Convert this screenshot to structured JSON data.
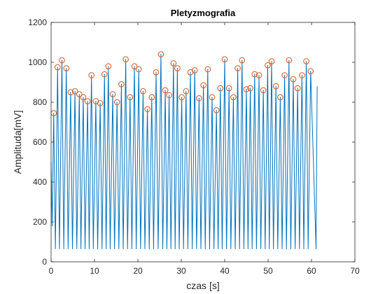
{
  "chart_data": {
    "type": "line",
    "title": "Pletyzmografia",
    "xlabel": "czas [s]",
    "ylabel": "Amplituda[mV]",
    "xlim": [
      0,
      70
    ],
    "ylim": [
      0,
      1200
    ],
    "xticks": [
      0,
      10,
      20,
      30,
      40,
      50,
      60,
      70
    ],
    "yticks": [
      0,
      200,
      400,
      600,
      800,
      1000,
      1200
    ],
    "xtick_labels": [
      "0",
      "10",
      "20",
      "30",
      "40",
      "50",
      "60",
      "70"
    ],
    "ytick_labels": [
      "0",
      "200",
      "400",
      "600",
      "800",
      "1000",
      "1200"
    ],
    "grid": false,
    "legend": "none",
    "series": [
      {
        "kind": "line",
        "color": "#0072BD",
        "peaks": [
          [
            0.6,
            745
          ],
          [
            1.5,
            975
          ],
          [
            2.5,
            1010
          ],
          [
            3.5,
            970
          ],
          [
            4.5,
            850
          ],
          [
            5.5,
            855
          ],
          [
            6.5,
            840
          ],
          [
            7.4,
            825
          ],
          [
            8.4,
            805
          ],
          [
            9.3,
            935
          ],
          [
            10.3,
            805
          ],
          [
            11.3,
            795
          ],
          [
            12.3,
            940
          ],
          [
            13.2,
            980
          ],
          [
            14.2,
            840
          ],
          [
            15.2,
            800
          ],
          [
            16.2,
            890
          ],
          [
            17.2,
            1015
          ],
          [
            18.2,
            825
          ],
          [
            19.2,
            980
          ],
          [
            20.2,
            965
          ],
          [
            21.2,
            855
          ],
          [
            22.2,
            765
          ],
          [
            23.2,
            825
          ],
          [
            24.2,
            950
          ],
          [
            25.3,
            1040
          ],
          [
            26.3,
            860
          ],
          [
            27.2,
            835
          ],
          [
            28.2,
            995
          ],
          [
            29.1,
            970
          ],
          [
            30.1,
            825
          ],
          [
            31.1,
            855
          ],
          [
            32.1,
            950
          ],
          [
            33.1,
            960
          ],
          [
            34.1,
            820
          ],
          [
            35.1,
            885
          ],
          [
            36.1,
            965
          ],
          [
            37.1,
            825
          ],
          [
            38.1,
            760
          ],
          [
            39.0,
            870
          ],
          [
            40.0,
            1015
          ],
          [
            41.0,
            870
          ],
          [
            42.0,
            825
          ],
          [
            43.0,
            970
          ],
          [
            44.0,
            1010
          ],
          [
            45.0,
            865
          ],
          [
            45.9,
            870
          ],
          [
            46.9,
            940
          ],
          [
            47.9,
            935
          ],
          [
            48.9,
            860
          ],
          [
            49.9,
            985
          ],
          [
            50.8,
            1005
          ],
          [
            51.8,
            880
          ],
          [
            52.8,
            825
          ],
          [
            53.8,
            935
          ],
          [
            54.8,
            1010
          ],
          [
            55.8,
            915
          ],
          [
            56.8,
            870
          ],
          [
            57.8,
            935
          ],
          [
            58.8,
            1005
          ],
          [
            59.8,
            955
          ]
        ],
        "trough": 65,
        "x_start": 0,
        "x_end": 61.3
      },
      {
        "kind": "scatter",
        "marker": "circle",
        "color": "#D95319",
        "points_from": "peaks"
      }
    ]
  }
}
